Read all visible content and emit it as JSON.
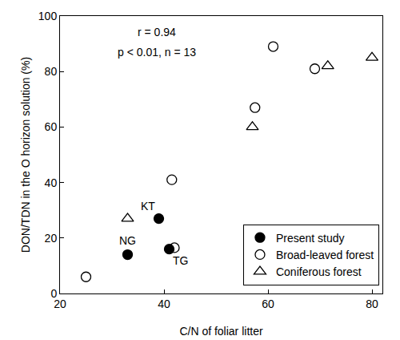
{
  "chart_data": {
    "type": "scatter",
    "x_label": "C/N of foliar litter",
    "y_label": "DON/TDN in the O horizon solution (%)",
    "annotations": [
      "r = 0.94",
      "p < 0.01, n = 13"
    ],
    "series": [
      {
        "name": "Present study",
        "color": "#000000",
        "marker": "circle",
        "x": [
          33,
          39,
          41
        ],
        "values": [
          14,
          27,
          16
        ],
        "labels": [
          "NG",
          "KT",
          "TG"
        ]
      },
      {
        "name": "Broad-leaved forest",
        "color": "#000000",
        "marker": "circle-open",
        "x": [
          25,
          41.5,
          42,
          57.5,
          61,
          69
        ],
        "values": [
          6,
          41,
          16.5,
          67,
          89,
          81
        ]
      },
      {
        "name": "Coniferous forest",
        "color": "#000000",
        "marker": "triangle-up-open",
        "x": [
          33,
          57,
          71.5,
          80
        ],
        "values": [
          27,
          60,
          82,
          85
        ]
      }
    ],
    "xlim": [
      20,
      82
    ],
    "xticks": [
      20,
      40,
      60,
      80
    ],
    "ylim": [
      0,
      100
    ],
    "yticks": [
      0,
      20,
      40,
      60,
      80,
      100
    ],
    "grid": false,
    "legend": "lower right"
  }
}
